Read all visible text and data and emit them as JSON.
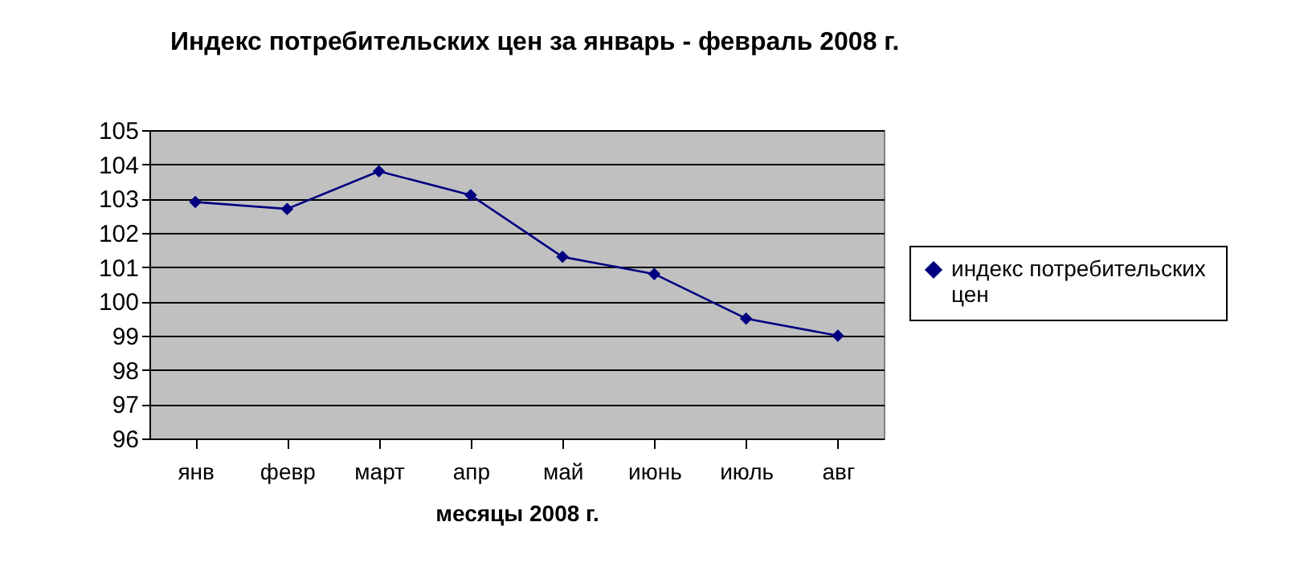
{
  "chart_data": {
    "type": "line",
    "title": "Индекс потребительских цен за январь - февраль 2008 г.",
    "xlabel": "месяцы 2008 г.",
    "categories": [
      "янв",
      "февр",
      "март",
      "апр",
      "май",
      "июнь",
      "июль",
      "авг"
    ],
    "series": [
      {
        "name": "индекс  потребительских цен",
        "color": "#000080",
        "values": [
          102.9,
          102.7,
          103.8,
          103.1,
          101.3,
          100.8,
          99.5,
          99.0
        ]
      }
    ],
    "ylim": [
      96,
      105
    ],
    "yticks": [
      96,
      97,
      98,
      99,
      100,
      101,
      102,
      103,
      104,
      105
    ],
    "grid": "y",
    "legend": "right",
    "marker": "diamond",
    "line_style": "solid"
  }
}
